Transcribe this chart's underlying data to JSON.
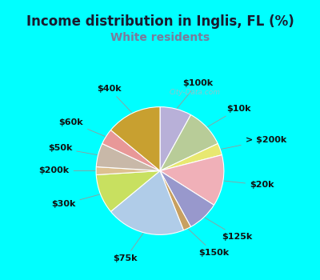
{
  "title": "Income distribution in Inglis, FL (%)",
  "subtitle": "White residents",
  "title_color": "#1a1a2e",
  "subtitle_color": "#7a7a9a",
  "bg_cyan": "#00ffff",
  "bg_chart": "#e0f5e8",
  "watermark": "City-Data.com",
  "slices": [
    {
      "label": "$100k",
      "value": 8,
      "color": "#b8b0d8"
    },
    {
      "label": "$10k",
      "value": 10,
      "color": "#b8cc98"
    },
    {
      "label": "> $200k",
      "value": 3,
      "color": "#e8e870"
    },
    {
      "label": "$20k",
      "value": 13,
      "color": "#f0b0b8"
    },
    {
      "label": "$125k",
      "value": 8,
      "color": "#9898cc"
    },
    {
      "label": "$150k",
      "value": 2,
      "color": "#c8a060"
    },
    {
      "label": "$75k",
      "value": 20,
      "color": "#b0cce8"
    },
    {
      "label": "$30k",
      "value": 10,
      "color": "#c8e060"
    },
    {
      "label": "$200k",
      "value": 2,
      "color": "#ddc090"
    },
    {
      "label": "$50k",
      "value": 6,
      "color": "#c8b8a8"
    },
    {
      "label": "$60k",
      "value": 4,
      "color": "#e89898"
    },
    {
      "label": "$40k",
      "value": 14,
      "color": "#c8a030"
    }
  ],
  "label_fontsize": 8,
  "title_fontsize": 12,
  "subtitle_fontsize": 10,
  "startangle": 90
}
